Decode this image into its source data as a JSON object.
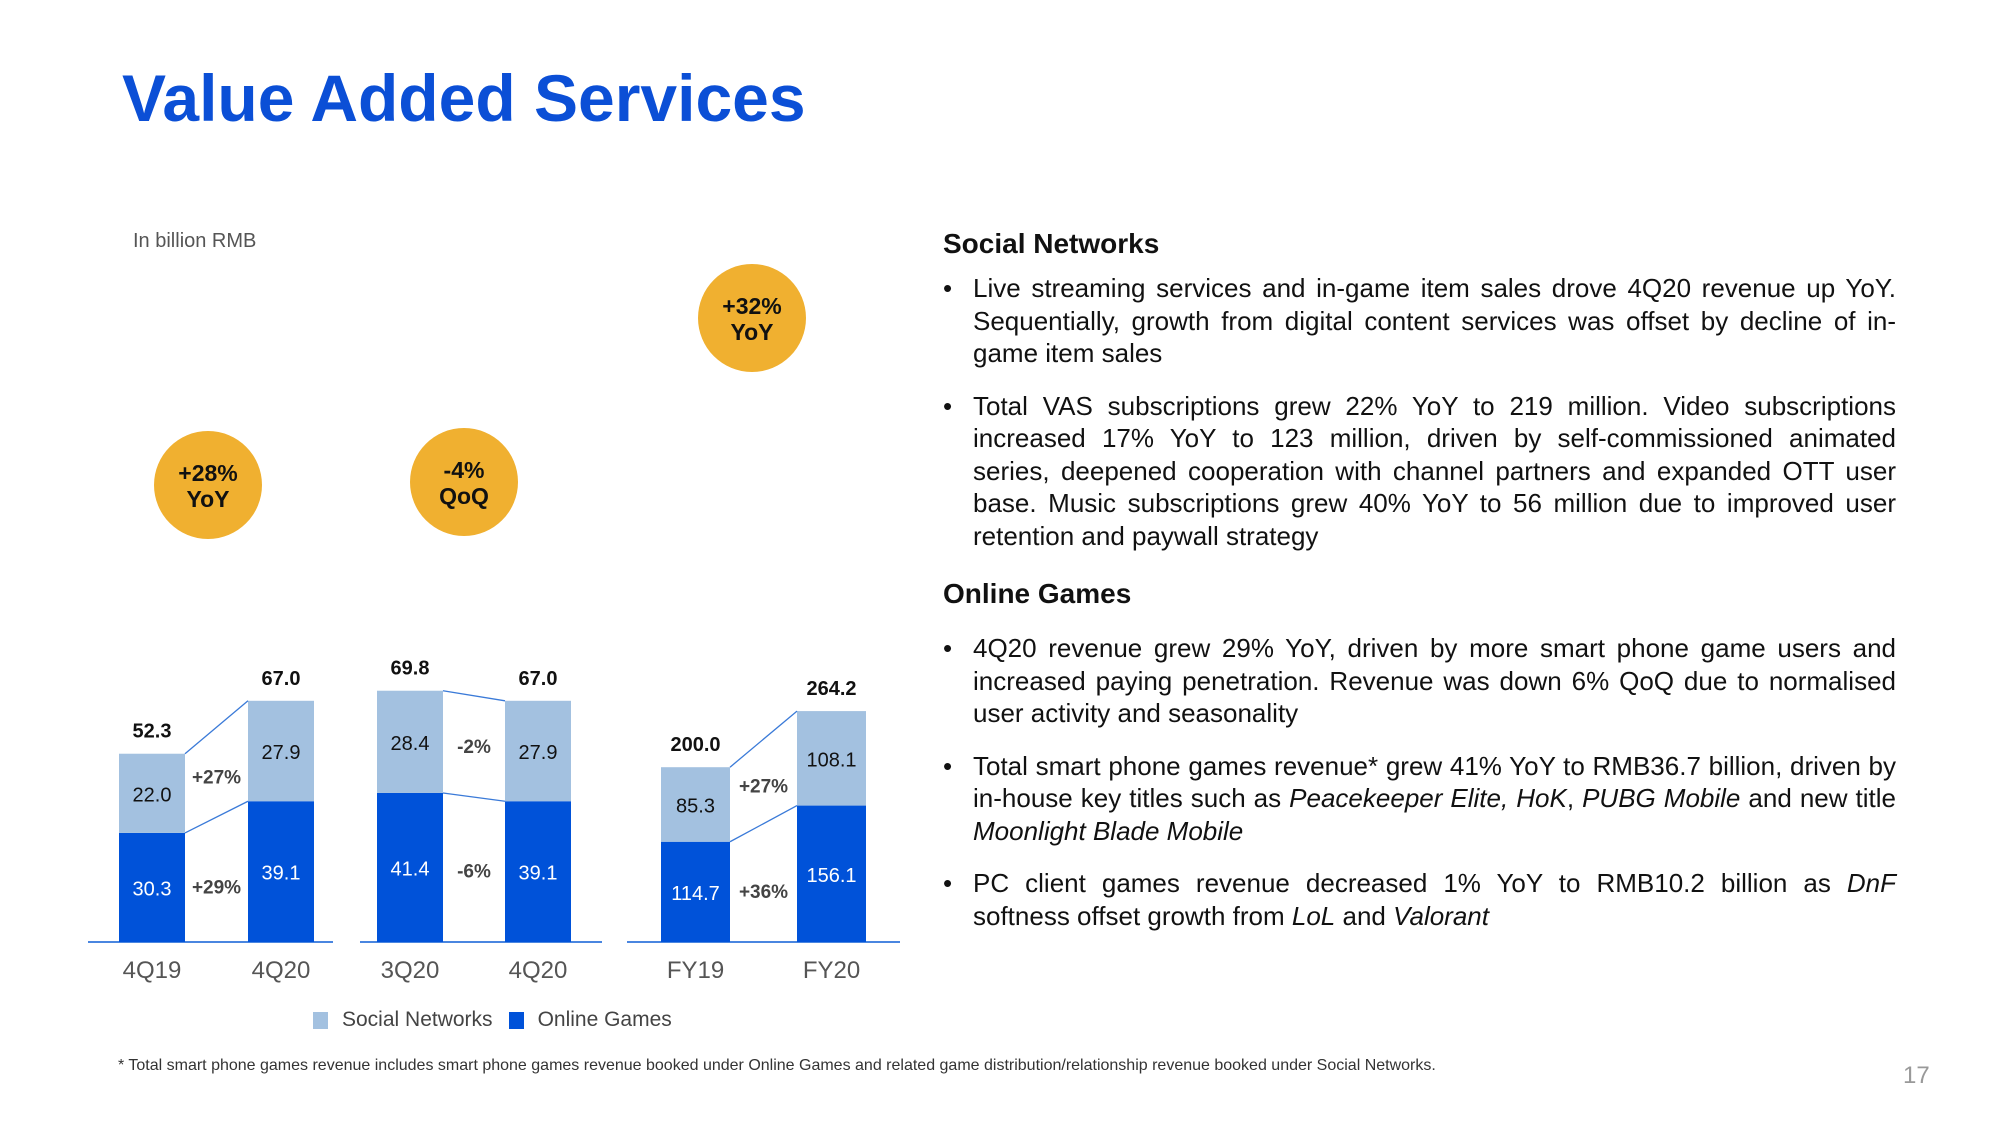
{
  "title": "Value Added Services",
  "unit_label": "In billion RMB",
  "colors": {
    "social": "#a3c1e0",
    "online": "#0052d9",
    "badge": "#f0b030",
    "title": "#0b4fd6"
  },
  "chart_data": {
    "type": "bar",
    "stacked": true,
    "ylabel": "In billion RMB",
    "legend": [
      "Social Networks",
      "Online Games"
    ],
    "legend_position": "bottom",
    "groups": [
      {
        "categories": [
          "4Q19",
          "4Q20"
        ],
        "series": [
          {
            "name": "Online Games",
            "values": [
              30.3,
              39.1
            ]
          },
          {
            "name": "Social Networks",
            "values": [
              22.0,
              27.9
            ]
          }
        ],
        "totals": [
          "52.3",
          "67.0"
        ],
        "changes": {
          "Social Networks": "+27%",
          "Online Games": "+29%"
        },
        "badge": [
          "+28%",
          "YoY"
        ]
      },
      {
        "categories": [
          "3Q20",
          "4Q20"
        ],
        "series": [
          {
            "name": "Online Games",
            "values": [
              41.4,
              39.1
            ]
          },
          {
            "name": "Social Networks",
            "values": [
              28.4,
              27.9
            ]
          }
        ],
        "totals": [
          "69.8",
          "67.0"
        ],
        "changes": {
          "Social Networks": "-2%",
          "Online Games": "-6%"
        },
        "badge": [
          "-4%",
          "QoQ"
        ]
      },
      {
        "categories": [
          "FY19",
          "FY20"
        ],
        "series": [
          {
            "name": "Online Games",
            "values": [
              114.7,
              156.1
            ]
          },
          {
            "name": "Social Networks",
            "values": [
              85.3,
              108.1
            ]
          }
        ],
        "totals": [
          "200.0",
          "264.2"
        ],
        "changes": {
          "Social Networks": "+27%",
          "Online Games": "+36%"
        },
        "badge": [
          "+32%",
          "YoY"
        ]
      }
    ]
  },
  "sections": [
    {
      "heading": "Social Networks",
      "bullets": [
        "Live streaming services and in-game item sales drove 4Q20 revenue up YoY. Sequentially, growth from digital content services was offset by decline of in-game item sales",
        "Total VAS subscriptions grew 22% YoY to 219 million. Video subscriptions increased 17% YoY to 123 million, driven by self-commissioned animated series, deepened cooperation with channel partners and expanded OTT user base. Music subscriptions grew 40% YoY to 56 million due to improved user retention and paywall strategy"
      ]
    },
    {
      "heading": "Online Games",
      "bullets": [
        "4Q20 revenue grew 29% YoY, driven by more smart phone game users and increased paying penetration. Revenue was down 6% QoQ due to normalised user activity and seasonality",
        "Total smart phone games revenue* grew 41% YoY to RMB36.7 billion, driven by in-house key titles such as Peacekeeper Elite, HoK, PUBG Mobile and new title Moonlight Blade Mobile",
        "PC client games revenue decreased 1% YoY to RMB10.2 billion as DnF softness offset growth from LoL and Valorant"
      ]
    }
  ],
  "footnote": "* Total smart phone games revenue includes smart phone games revenue booked under Online Games and related game distribution/relationship revenue booked under Social Networks.",
  "page_number": "17"
}
